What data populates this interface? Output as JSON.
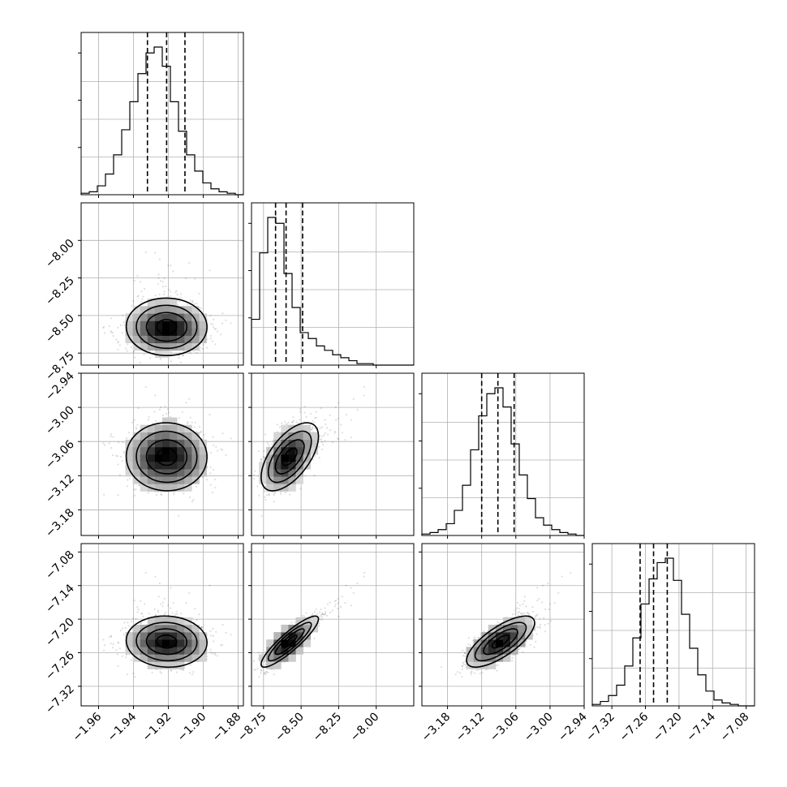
{
  "chart_data": {
    "type": "corner",
    "n_params": 4,
    "grid": true,
    "quantiles": [
      0.16,
      0.5,
      0.84
    ],
    "params": [
      {
        "range": [
          -1.97,
          -1.877
        ],
        "ticks": [
          -1.96,
          -1.94,
          -1.92,
          -1.9,
          -1.88
        ],
        "tick_labels": [
          "−1.96",
          "−1.94",
          "−1.92",
          "−1.90",
          "−1.88"
        ],
        "mean": -1.921,
        "sd": 0.0115,
        "q16": -1.932,
        "q50": -1.921,
        "q84": -1.9105
      },
      {
        "range": [
          -8.83,
          -7.75
        ],
        "ticks": [
          -8.75,
          -8.5,
          -8.25,
          -8.0
        ],
        "tick_labels": [
          "−8.75",
          "−8.50",
          "−8.25",
          "−8.00"
        ],
        "mean": -8.6,
        "sd": 0.07,
        "skew_tail": 0.18,
        "q16": -8.67,
        "q50": -8.6,
        "q84": -8.49
      },
      {
        "range": [
          -3.225,
          -2.94
        ],
        "ticks": [
          -3.18,
          -3.12,
          -3.06,
          -3.0,
          -2.94
        ],
        "tick_labels": [
          "−3.18",
          "−3.12",
          "−3.06",
          "−3.00",
          "−2.94"
        ],
        "mean": -3.0915,
        "sd": 0.03,
        "q16": -3.12,
        "q50": -3.0915,
        "q84": -3.063
      },
      {
        "range": [
          -7.355,
          -7.065
        ],
        "ticks": [
          -7.32,
          -7.26,
          -7.2,
          -7.14,
          -7.08
        ],
        "tick_labels": [
          "−7.32",
          "−7.26",
          "−7.20",
          "−7.14",
          "−7.08"
        ],
        "mean": -7.2455,
        "sd": 0.0215,
        "q16": -7.2695,
        "q50": -7.2455,
        "q84": -7.221
      }
    ],
    "histograms": [
      {
        "param": 0,
        "bins": 20,
        "counts": [
          1,
          2,
          6,
          14,
          27,
          44,
          63,
          82,
          96,
          100,
          87,
          63,
          43,
          27,
          16,
          8,
          4,
          2,
          1,
          0
        ]
      },
      {
        "param": 1,
        "bins": 20,
        "counts": [
          31,
          76,
          100,
          96,
          62,
          39,
          22,
          18,
          13,
          10,
          7,
          5,
          3,
          1,
          1,
          0,
          0,
          0,
          0,
          0
        ]
      },
      {
        "param": 2,
        "bins": 20,
        "counts": [
          1,
          2,
          4,
          8,
          17,
          34,
          58,
          81,
          96,
          100,
          87,
          62,
          41,
          25,
          12,
          7,
          4,
          2,
          1,
          0
        ]
      },
      {
        "param": 3,
        "bins": 20,
        "counts": [
          1,
          3,
          7,
          14,
          27,
          46,
          69,
          86,
          97,
          100,
          85,
          62,
          39,
          21,
          10,
          4,
          2,
          1,
          0,
          0
        ]
      }
    ],
    "pairs": [
      {
        "x": 0,
        "y": 1,
        "corr": 0.0
      },
      {
        "x": 0,
        "y": 2,
        "corr": 0.0
      },
      {
        "x": 1,
        "y": 2,
        "corr": 0.6
      },
      {
        "x": 0,
        "y": 3,
        "corr": -0.05
      },
      {
        "x": 1,
        "y": 3,
        "corr": 0.9
      },
      {
        "x": 2,
        "y": 3,
        "corr": 0.5
      }
    ]
  }
}
